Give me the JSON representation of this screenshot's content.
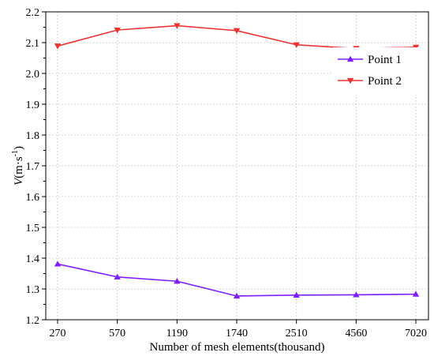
{
  "chart_data": {
    "type": "line",
    "categories": [
      "270",
      "570",
      "1190",
      "1740",
      "2510",
      "4560",
      "7020"
    ],
    "xlabel": "Number of mesh elements(thousand)",
    "ylabel_prefix": "V",
    "ylabel_unit_open": "(m·s",
    "ylabel_unit_exp": "-1",
    "ylabel_unit_close": ")",
    "ylim": [
      1.2,
      2.2
    ],
    "yticks": [
      "1.2",
      "1.3",
      "1.4",
      "1.5",
      "1.6",
      "1.7",
      "1.8",
      "1.9",
      "2.0",
      "2.1",
      "2.2"
    ],
    "grid": true,
    "legend_position": "top-right",
    "series": [
      {
        "name": "Point 1",
        "color": "#7f1fff",
        "marker": "triangle-up",
        "values": [
          1.381,
          1.339,
          1.325,
          1.277,
          1.28,
          1.281,
          1.283
        ]
      },
      {
        "name": "Point 2",
        "color": "#ee3333",
        "marker": "triangle-down",
        "values": [
          2.089,
          2.141,
          2.155,
          2.139,
          2.093,
          2.081,
          2.085
        ]
      }
    ]
  }
}
